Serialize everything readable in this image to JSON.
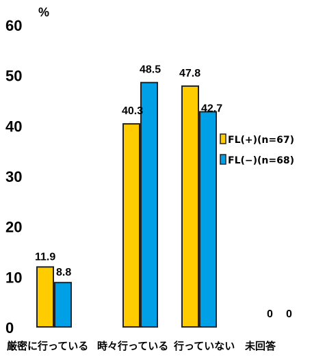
{
  "chart_data": {
    "type": "bar",
    "unit_label": "%",
    "categories": [
      "厳密に行っている",
      "時々行っている",
      "行っていない",
      "未回答"
    ],
    "series": [
      {
        "name": "FL(+)(n=67)",
        "color": "#FFCC00",
        "values": [
          11.9,
          40.3,
          47.8,
          0
        ]
      },
      {
        "name": "FL(−)(n=68)",
        "color": "#00A0E6",
        "values": [
          8.8,
          48.5,
          42.7,
          0
        ]
      }
    ],
    "ylim": [
      0,
      60
    ],
    "yticks": [
      0,
      10,
      20,
      30,
      40,
      50,
      60
    ],
    "grid": false,
    "legend_position": "right"
  }
}
